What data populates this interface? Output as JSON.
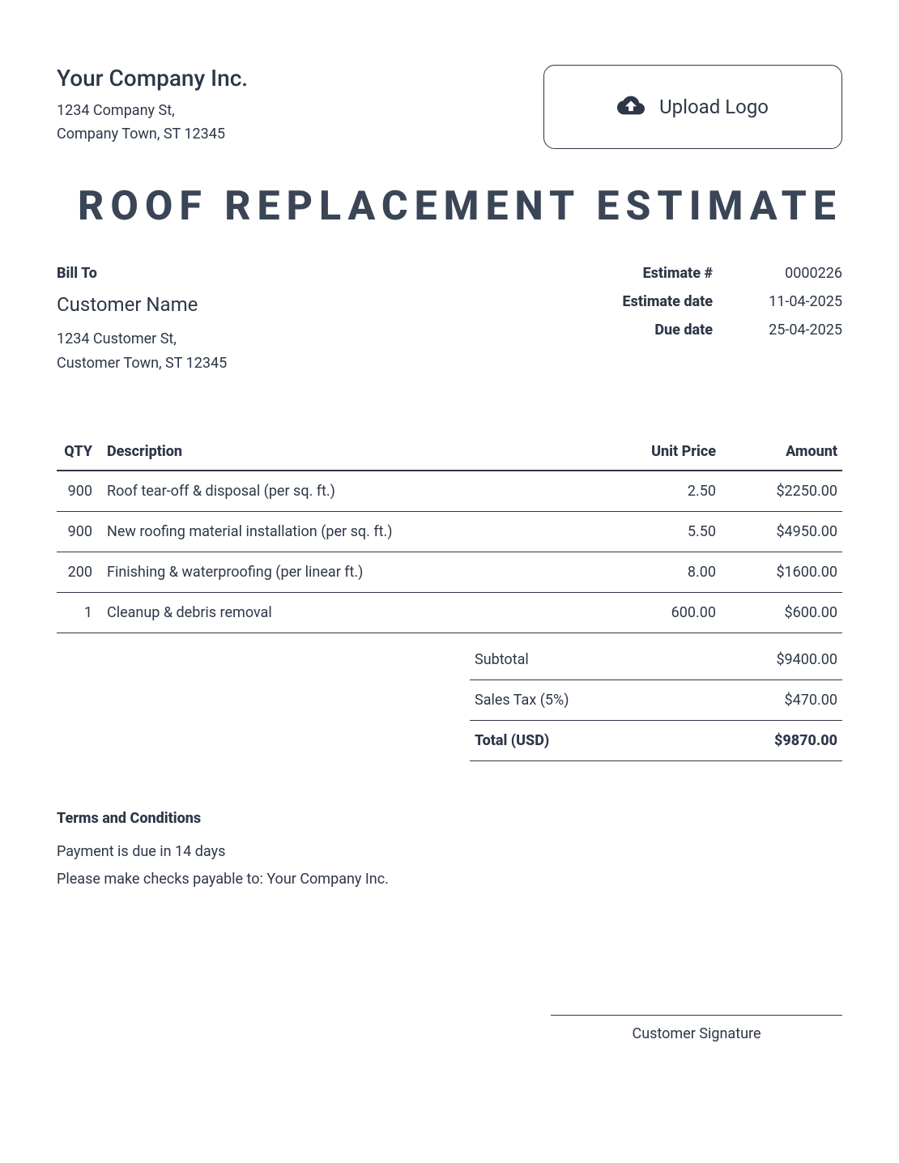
{
  "company": {
    "name": "Your Company Inc.",
    "address_line1": "1234 Company St,",
    "address_line2": "Company Town, ST 12345"
  },
  "upload_logo_label": "Upload Logo",
  "document_title": "ROOF REPLACEMENT ESTIMATE",
  "bill_to": {
    "heading": "Bill To",
    "name": "Customer Name",
    "address_line1": "1234 Customer St,",
    "address_line2": "Customer Town, ST 12345"
  },
  "meta": {
    "estimate_number_label": "Estimate #",
    "estimate_number": "0000226",
    "estimate_date_label": "Estimate date",
    "estimate_date": "11-04-2025",
    "due_date_label": "Due date",
    "due_date": "25-04-2025"
  },
  "table": {
    "columns": {
      "qty": "QTY",
      "description": "Description",
      "unit_price": "Unit Price",
      "amount": "Amount"
    },
    "rows": [
      {
        "qty": "900",
        "description": "Roof tear-off & disposal (per sq. ft.)",
        "unit_price": "2.50",
        "amount": "$2250.00"
      },
      {
        "qty": "900",
        "description": "New roofing material installation (per sq. ft.)",
        "unit_price": "5.50",
        "amount": "$4950.00"
      },
      {
        "qty": "200",
        "description": "Finishing & waterproofing (per linear ft.)",
        "unit_price": "8.00",
        "amount": "$1600.00"
      },
      {
        "qty": "1",
        "description": "Cleanup & debris removal",
        "unit_price": "600.00",
        "amount": "$600.00"
      }
    ]
  },
  "totals": {
    "subtotal_label": "Subtotal",
    "subtotal": "$9400.00",
    "tax_label": "Sales Tax (5%)",
    "tax": "$470.00",
    "total_label": "Total (USD)",
    "total": "$9870.00"
  },
  "terms": {
    "heading": "Terms and Conditions",
    "line1": "Payment is due in 14 days",
    "line2": "Please make checks payable to: Your Company Inc."
  },
  "signature_label": "Customer Signature"
}
